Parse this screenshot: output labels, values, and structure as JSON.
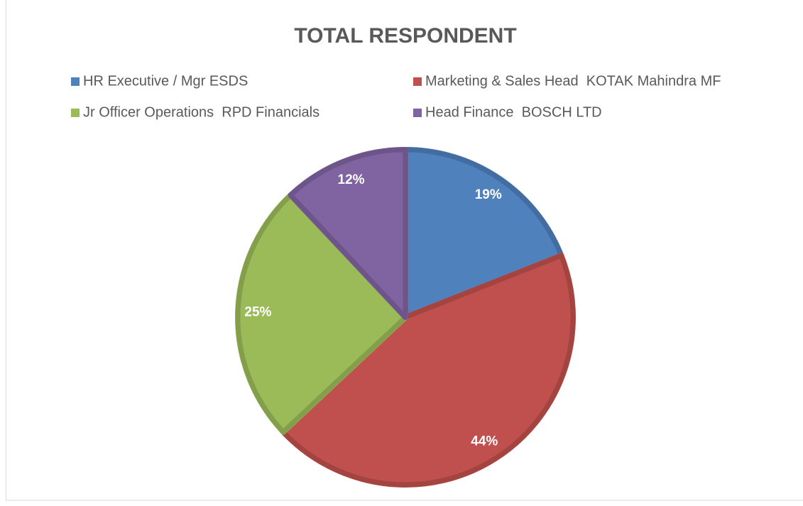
{
  "chart_data": {
    "type": "pie",
    "title": "TOTAL RESPONDENT",
    "categories": [
      "HR Executive / Mgr ESDS",
      "Marketing & Sales Head  KOTAK Mahindra MF",
      "Jr Officer Operations  RPD Financials",
      "Head Finance  BOSCH LTD"
    ],
    "values": [
      19,
      44,
      25,
      12
    ],
    "value_labels": [
      "19%",
      "44%",
      "25%",
      "12%"
    ],
    "colors": [
      "#4f81bd",
      "#c0504d",
      "#9bbb59",
      "#8064a2"
    ],
    "legend": "top"
  }
}
